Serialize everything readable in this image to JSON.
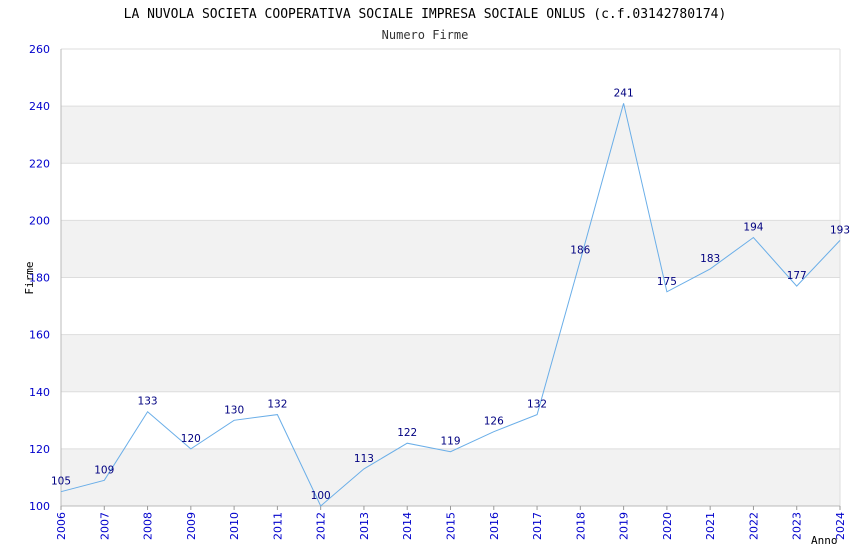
{
  "chart_data": {
    "type": "line",
    "title": "LA NUVOLA SOCIETA COOPERATIVA SOCIALE IMPRESA SOCIALE ONLUS (c.f.03142780174)",
    "subtitle": "Numero Firme",
    "xlabel": "Anno",
    "ylabel": "Firme",
    "ylim": [
      100,
      260
    ],
    "yticks": [
      100,
      120,
      140,
      160,
      180,
      200,
      220,
      240,
      260
    ],
    "x": [
      "2006",
      "2007",
      "2008",
      "2009",
      "2010",
      "2011",
      "2012",
      "2013",
      "2014",
      "2015",
      "2016",
      "2017",
      "2018",
      "2019",
      "2020",
      "2021",
      "2022",
      "2023",
      "2024"
    ],
    "series": [
      {
        "values": [
          105,
          109,
          133,
          120,
          130,
          132,
          100,
          113,
          122,
          119,
          126,
          132,
          186,
          241,
          175,
          183,
          194,
          177,
          193
        ]
      }
    ],
    "grid": true,
    "legend": "none",
    "colors": {
      "line": "#6aaee8",
      "band": "#f2f2f2",
      "grid": "#dddddd",
      "tick_text": "#0000cc",
      "label_text": "#000080"
    }
  }
}
